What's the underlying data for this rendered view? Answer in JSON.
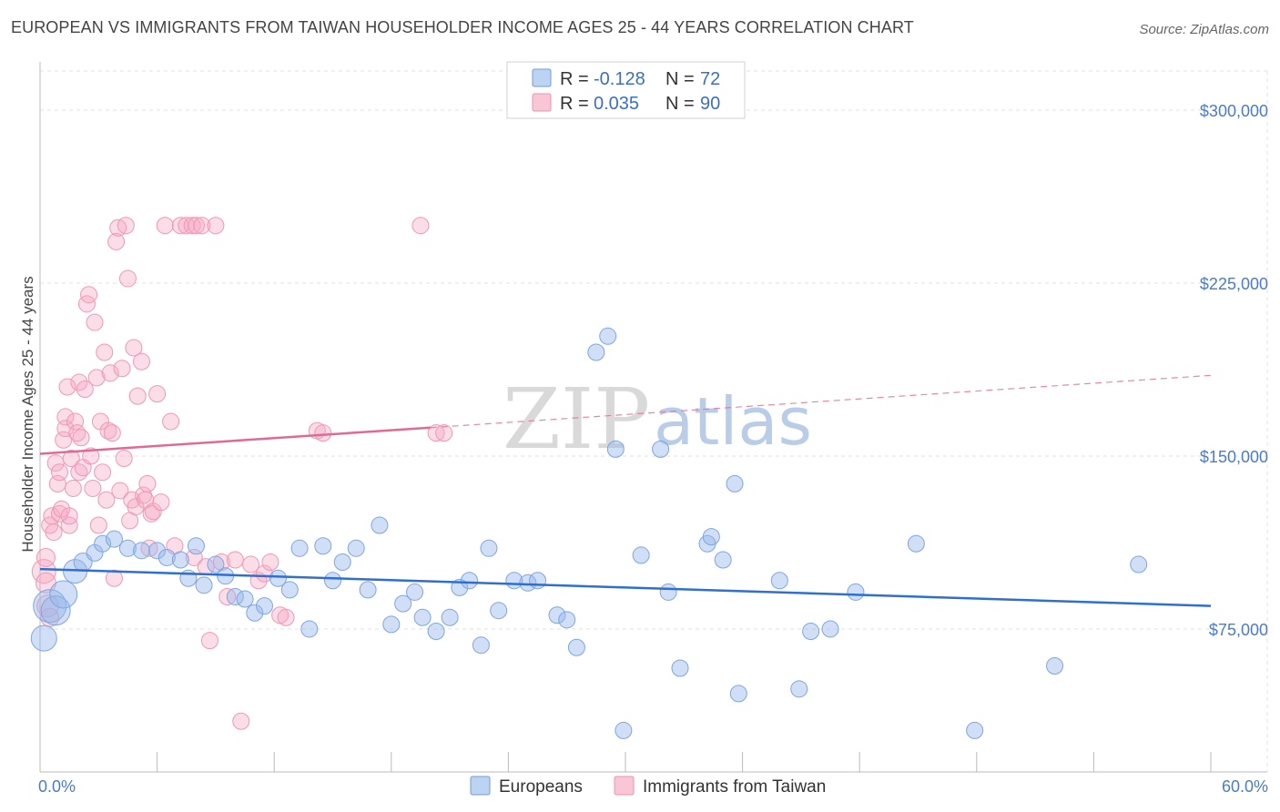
{
  "title": "EUROPEAN VS IMMIGRANTS FROM TAIWAN HOUSEHOLDER INCOME AGES 25 - 44 YEARS CORRELATION CHART",
  "source": "Source: ZipAtlas.com",
  "watermark": {
    "zip": "ZIP",
    "atlas": "atlas"
  },
  "legend_top": [
    {
      "r_label": "R = ",
      "r_value": "-0.128",
      "n_label": "N = ",
      "n_value": "72"
    },
    {
      "r_label": "R = ",
      "r_value": "0.035",
      "n_label": "N = ",
      "n_value": "90"
    }
  ],
  "colors": {
    "europeans": "#6f9ee0",
    "taiwan": "#f08fb0",
    "blue_line": "#2f6fcf",
    "pink_line": "#e06a94",
    "tick_text": "#4a7cc9"
  },
  "chart_data": {
    "type": "scatter",
    "title": "EUROPEAN VS IMMIGRANTS FROM TAIWAN HOUSEHOLDER INCOME AGES 25 - 44 YEARS CORRELATION CHART",
    "xlabel": "",
    "ylabel": "Householder Income Ages 25 - 44 years",
    "xlim": [
      0,
      60
    ],
    "ylim": [
      13000,
      317000
    ],
    "x_tick_labels": [
      "0.0%",
      "60.0%"
    ],
    "y_ticks": [
      75000,
      150000,
      225000,
      300000
    ],
    "y_tick_labels": [
      "$75,000",
      "$150,000",
      "$225,000",
      "$300,000"
    ],
    "grid": true,
    "legend_position": "top-center and bottom",
    "series": [
      {
        "name": "Europeans",
        "r": -0.128,
        "n": 72,
        "trend": {
          "x": [
            0,
            60
          ],
          "y": [
            101000,
            85000
          ]
        },
        "points": [
          [
            0.2,
            71000,
            14
          ],
          [
            0.5,
            85000,
            18
          ],
          [
            0.8,
            83000,
            16
          ],
          [
            1.2,
            90000,
            15
          ],
          [
            1.8,
            100000,
            13
          ],
          [
            2.2,
            104000,
            10
          ],
          [
            2.8,
            108000,
            9
          ],
          [
            3.2,
            112000,
            9
          ],
          [
            3.8,
            114000,
            9
          ],
          [
            4.5,
            110000,
            9
          ],
          [
            5.2,
            109000,
            9
          ],
          [
            6.0,
            109000,
            9
          ],
          [
            6.5,
            106000,
            9
          ],
          [
            7.2,
            105000,
            9
          ],
          [
            7.6,
            97000,
            9
          ],
          [
            8.0,
            111000,
            9
          ],
          [
            8.4,
            94000,
            9
          ],
          [
            9.0,
            103000,
            9
          ],
          [
            9.5,
            98000,
            9
          ],
          [
            10.0,
            89000,
            9
          ],
          [
            10.5,
            88000,
            9
          ],
          [
            11.0,
            82000,
            9
          ],
          [
            11.5,
            85000,
            9
          ],
          [
            12.2,
            97000,
            9
          ],
          [
            12.8,
            92000,
            9
          ],
          [
            13.3,
            110000,
            9
          ],
          [
            13.8,
            75000,
            9
          ],
          [
            14.5,
            111000,
            9
          ],
          [
            15.0,
            96000,
            9
          ],
          [
            15.5,
            104000,
            9
          ],
          [
            16.2,
            110000,
            9
          ],
          [
            16.8,
            92000,
            9
          ],
          [
            17.4,
            120000,
            9
          ],
          [
            18.0,
            77000,
            9
          ],
          [
            18.6,
            86000,
            9
          ],
          [
            19.2,
            91000,
            9
          ],
          [
            19.6,
            80000,
            9
          ],
          [
            20.3,
            74000,
            9
          ],
          [
            21.0,
            80000,
            9
          ],
          [
            21.5,
            93000,
            9
          ],
          [
            22.0,
            96000,
            9
          ],
          [
            22.6,
            68000,
            9
          ],
          [
            23.0,
            110000,
            9
          ],
          [
            23.5,
            83000,
            9
          ],
          [
            24.3,
            96000,
            9
          ],
          [
            25.0,
            95000,
            9
          ],
          [
            25.5,
            96000,
            9
          ],
          [
            26.5,
            81000,
            9
          ],
          [
            27.0,
            79000,
            9
          ],
          [
            27.5,
            67000,
            9
          ],
          [
            28.5,
            195000,
            9
          ],
          [
            29.1,
            202000,
            9
          ],
          [
            29.5,
            153000,
            9
          ],
          [
            29.9,
            31000,
            9
          ],
          [
            30.8,
            107000,
            9
          ],
          [
            31.8,
            153000,
            9
          ],
          [
            32.2,
            91000,
            9
          ],
          [
            32.8,
            58000,
            9
          ],
          [
            34.2,
            112000,
            9
          ],
          [
            34.4,
            115000,
            9
          ],
          [
            35.0,
            105000,
            9
          ],
          [
            35.6,
            138000,
            9
          ],
          [
            35.8,
            47000,
            9
          ],
          [
            37.9,
            96000,
            9
          ],
          [
            38.9,
            49000,
            9
          ],
          [
            39.5,
            74000,
            9
          ],
          [
            40.5,
            75000,
            9
          ],
          [
            41.8,
            91000,
            9
          ],
          [
            44.9,
            112000,
            9
          ],
          [
            47.9,
            31000,
            9
          ],
          [
            52.0,
            59000,
            9
          ],
          [
            56.3,
            103000,
            9
          ]
        ]
      },
      {
        "name": "Immigrants from Taiwan",
        "r": 0.035,
        "n": 90,
        "trend": {
          "x": [
            0,
            60
          ],
          "y": [
            151000,
            185000
          ],
          "solid_until_x": 20
        },
        "points": [
          [
            0.2,
            100000,
            13
          ],
          [
            0.3,
            95000,
            11
          ],
          [
            0.3,
            106000,
            10
          ],
          [
            0.4,
            85000,
            12
          ],
          [
            0.5,
            80000,
            10
          ],
          [
            0.5,
            120000,
            9
          ],
          [
            0.6,
            124000,
            9
          ],
          [
            0.7,
            117000,
            9
          ],
          [
            0.8,
            147000,
            9
          ],
          [
            0.9,
            138000,
            9
          ],
          [
            1.0,
            143000,
            9
          ],
          [
            1.0,
            125000,
            9
          ],
          [
            1.1,
            127000,
            9
          ],
          [
            1.2,
            157000,
            9
          ],
          [
            1.3,
            162000,
            9
          ],
          [
            1.3,
            167000,
            9
          ],
          [
            1.4,
            180000,
            9
          ],
          [
            1.5,
            120000,
            9
          ],
          [
            1.5,
            124000,
            9
          ],
          [
            1.6,
            149000,
            9
          ],
          [
            1.7,
            136000,
            9
          ],
          [
            1.8,
            165000,
            9
          ],
          [
            1.9,
            160000,
            9
          ],
          [
            2.0,
            143000,
            9
          ],
          [
            2.0,
            182000,
            9
          ],
          [
            2.1,
            158000,
            9
          ],
          [
            2.2,
            145000,
            9
          ],
          [
            2.3,
            179000,
            9
          ],
          [
            2.4,
            216000,
            9
          ],
          [
            2.5,
            220000,
            9
          ],
          [
            2.6,
            150000,
            9
          ],
          [
            2.7,
            136000,
            9
          ],
          [
            2.8,
            208000,
            9
          ],
          [
            2.9,
            184000,
            9
          ],
          [
            3.0,
            120000,
            9
          ],
          [
            3.1,
            165000,
            9
          ],
          [
            3.2,
            143000,
            9
          ],
          [
            3.3,
            195000,
            9
          ],
          [
            3.4,
            131000,
            9
          ],
          [
            3.5,
            161000,
            9
          ],
          [
            3.6,
            186000,
            9
          ],
          [
            3.7,
            160000,
            9
          ],
          [
            3.8,
            97000,
            9
          ],
          [
            3.9,
            243000,
            9
          ],
          [
            4.0,
            249000,
            9
          ],
          [
            4.1,
            135000,
            9
          ],
          [
            4.2,
            188000,
            9
          ],
          [
            4.3,
            149000,
            9
          ],
          [
            4.4,
            250000,
            9
          ],
          [
            4.5,
            227000,
            9
          ],
          [
            4.6,
            122000,
            9
          ],
          [
            4.7,
            131000,
            9
          ],
          [
            4.8,
            197000,
            9
          ],
          [
            4.9,
            128000,
            9
          ],
          [
            5.0,
            176000,
            9
          ],
          [
            5.2,
            191000,
            9
          ],
          [
            5.3,
            133000,
            9
          ],
          [
            5.4,
            131000,
            9
          ],
          [
            5.5,
            138000,
            9
          ],
          [
            5.6,
            110000,
            9
          ],
          [
            5.7,
            125000,
            9
          ],
          [
            5.8,
            126000,
            9
          ],
          [
            6.0,
            177000,
            9
          ],
          [
            6.2,
            130000,
            9
          ],
          [
            6.4,
            250000,
            9
          ],
          [
            6.7,
            165000,
            9
          ],
          [
            6.9,
            111000,
            9
          ],
          [
            7.2,
            250000,
            9
          ],
          [
            7.5,
            250000,
            9
          ],
          [
            7.8,
            250000,
            9
          ],
          [
            7.9,
            106000,
            9
          ],
          [
            8.0,
            250000,
            9
          ],
          [
            8.3,
            250000,
            9
          ],
          [
            8.5,
            102000,
            9
          ],
          [
            8.7,
            70000,
            9
          ],
          [
            9.0,
            250000,
            9
          ],
          [
            9.3,
            104000,
            9
          ],
          [
            9.6,
            89000,
            9
          ],
          [
            10.0,
            105000,
            9
          ],
          [
            10.3,
            35000,
            9
          ],
          [
            10.8,
            103000,
            9
          ],
          [
            11.2,
            96000,
            9
          ],
          [
            11.5,
            99000,
            9
          ],
          [
            11.8,
            104000,
            9
          ],
          [
            12.3,
            81000,
            9
          ],
          [
            12.6,
            80000,
            9
          ],
          [
            14.2,
            161000,
            9
          ],
          [
            14.5,
            160000,
            9
          ],
          [
            20.3,
            160000,
            9
          ],
          [
            20.7,
            160000,
            9
          ],
          [
            19.5,
            250000,
            9
          ]
        ]
      }
    ]
  },
  "bottom_legend": [
    {
      "label": "Europeans"
    },
    {
      "label": "Immigrants from Taiwan"
    }
  ]
}
